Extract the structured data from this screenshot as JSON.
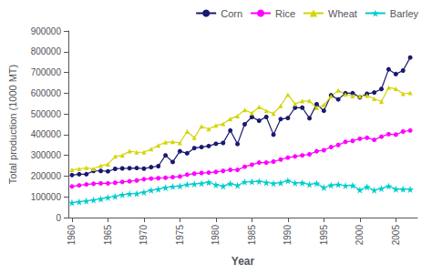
{
  "chart_data": {
    "type": "line",
    "x": [
      1960,
      1961,
      1962,
      1963,
      1964,
      1965,
      1966,
      1967,
      1968,
      1969,
      1970,
      1971,
      1972,
      1973,
      1974,
      1975,
      1976,
      1977,
      1978,
      1979,
      1980,
      1981,
      1982,
      1983,
      1984,
      1985,
      1986,
      1987,
      1988,
      1989,
      1990,
      1991,
      1992,
      1993,
      1994,
      1995,
      1996,
      1997,
      1998,
      1999,
      2000,
      2001,
      2002,
      2003,
      2004,
      2005,
      2006,
      2007
    ],
    "series": [
      {
        "name": "Corn",
        "color": "#191970",
        "marker": "circle",
        "values": [
          205000,
          209000,
          209000,
          225000,
          225000,
          223000,
          235000,
          237000,
          238000,
          239000,
          236000,
          243000,
          248000,
          300000,
          268000,
          320000,
          310000,
          335000,
          340000,
          345000,
          356000,
          360000,
          420000,
          355000,
          450000,
          485000,
          467000,
          485000,
          400000,
          475000,
          480000,
          530000,
          530000,
          479000,
          547000,
          515000,
          590000,
          570000,
          600000,
          600000,
          580000,
          597000,
          603000,
          620000,
          715000,
          692000,
          709000,
          772000
        ]
      },
      {
        "name": "Rice",
        "color": "#ff00ff",
        "marker": "circle",
        "values": [
          150000,
          155000,
          160000,
          163000,
          165000,
          165000,
          168000,
          172000,
          175000,
          179000,
          185000,
          188000,
          190000,
          192000,
          195000,
          198000,
          207000,
          212000,
          215000,
          217000,
          220000,
          225000,
          230000,
          230000,
          245000,
          255000,
          265000,
          265000,
          270000,
          280000,
          289000,
          295000,
          300000,
          305000,
          320000,
          325000,
          340000,
          350000,
          365000,
          370000,
          380000,
          385000,
          375000,
          390000,
          402000,
          400000,
          415000,
          420000
        ]
      },
      {
        "name": "Wheat",
        "color": "#d4d400",
        "marker": "triangle",
        "values": [
          230000,
          235000,
          240000,
          235000,
          250000,
          257000,
          295000,
          300000,
          320000,
          315000,
          315000,
          330000,
          348000,
          363000,
          365000,
          360000,
          415000,
          385000,
          440000,
          427000,
          444000,
          452000,
          476000,
          490000,
          519000,
          504000,
          533000,
          515000,
          502000,
          539000,
          593000,
          548000,
          562000,
          563000,
          529000,
          543000,
          585000,
          613000,
          594000,
          586000,
          585000,
          588000,
          573000,
          560000,
          627000,
          621000,
          597000,
          601000
        ]
      },
      {
        "name": "Barley",
        "color": "#00cccc",
        "marker": "star",
        "values": [
          72000,
          76000,
          80000,
          85000,
          90000,
          97000,
          102000,
          110000,
          115000,
          116000,
          122000,
          132000,
          137000,
          145000,
          150000,
          152000,
          160000,
          162000,
          165000,
          170000,
          158000,
          152000,
          164000,
          155000,
          172000,
          173000,
          175000,
          169000,
          165000,
          168000,
          178000,
          167000,
          168000,
          160000,
          165000,
          145000,
          156000,
          160000,
          154000,
          155000,
          133000,
          148000,
          132000,
          140000,
          152000,
          137000,
          137000,
          136000
        ]
      }
    ],
    "xlabel": "Year",
    "ylabel": "Total production (1000 MT)",
    "xlim": [
      1959.5,
      2008
    ],
    "xticks": [
      1960,
      1965,
      1970,
      1975,
      1980,
      1985,
      1990,
      1995,
      2000,
      2005
    ],
    "ylim": [
      0,
      900000
    ],
    "yticks": [
      0,
      100000,
      200000,
      300000,
      400000,
      500000,
      600000,
      700000,
      800000,
      900000
    ],
    "grid": false,
    "legend": "upper right"
  }
}
